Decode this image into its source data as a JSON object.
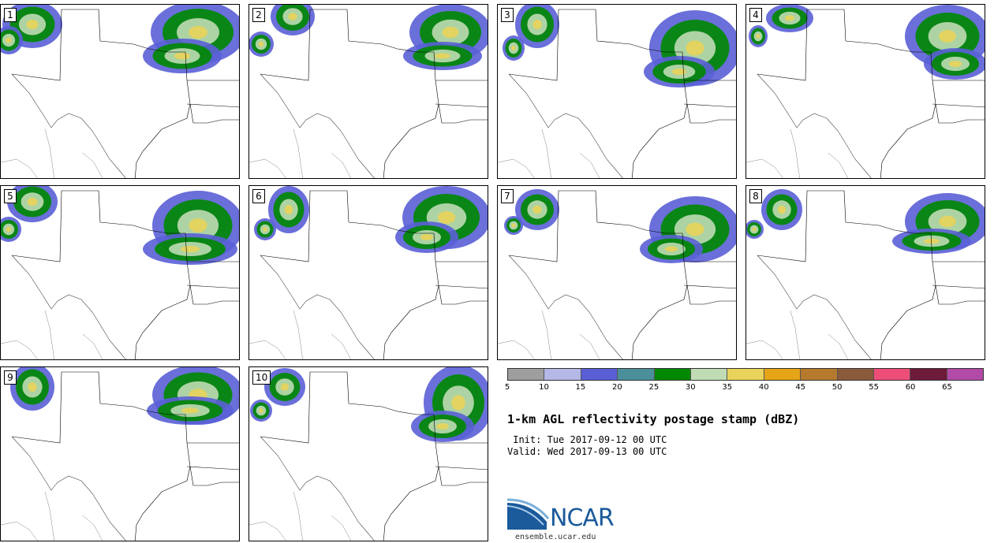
{
  "panels": [
    {
      "label": "1"
    },
    {
      "label": "2"
    },
    {
      "label": "3"
    },
    {
      "label": "4"
    },
    {
      "label": "5"
    },
    {
      "label": "6"
    },
    {
      "label": "7"
    },
    {
      "label": "8"
    },
    {
      "label": "9"
    },
    {
      "label": "10"
    }
  ],
  "colorbar": {
    "colors": [
      "#9e9e9e",
      "#b4b9e8",
      "#5a5fd6",
      "#4a8f9a",
      "#008800",
      "#bfdcb4",
      "#e9d35a",
      "#e6a417",
      "#b67a2e",
      "#8a5a3a",
      "#ec4e78",
      "#6e1a3a",
      "#b24aa8"
    ],
    "ticks": [
      "5",
      "10",
      "15",
      "20",
      "25",
      "30",
      "35",
      "40",
      "45",
      "50",
      "55",
      "60",
      "65"
    ]
  },
  "title": "1-km AGL reflectivity postage stamp (dBZ)",
  "init": " Init: Tue 2017-09-12 00 UTC",
  "valid": "Valid: Wed 2017-09-13 00 UTC",
  "logo_text": "NCAR",
  "url": "ensemble.ucar.edu"
}
